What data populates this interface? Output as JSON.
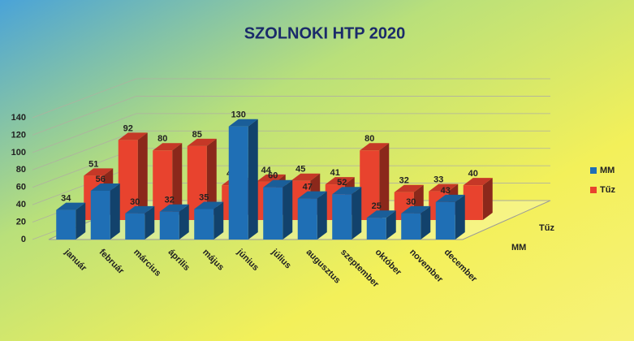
{
  "chart_data": {
    "type": "bar3d",
    "title": "SZOLNOKI HTP 2020",
    "categories": [
      "január",
      "február",
      "március",
      "április",
      "május",
      "június",
      "július",
      "augusztus",
      "szeptember",
      "október",
      "november",
      "december"
    ],
    "series": [
      {
        "name": "MM",
        "color": "#1f6fb5",
        "values": [
          34,
          56,
          30,
          32,
          35,
          130,
          60,
          47,
          52,
          25,
          30,
          43
        ]
      },
      {
        "name": "Tűz",
        "color": "#e8432e",
        "values": [
          51,
          92,
          80,
          85,
          40,
          44,
          45,
          41,
          80,
          32,
          33,
          40
        ]
      }
    ],
    "ylim": [
      0,
      140
    ],
    "yticks": [
      0,
      20,
      40,
      60,
      80,
      100,
      120,
      140
    ],
    "grid": true,
    "legend": "right"
  }
}
